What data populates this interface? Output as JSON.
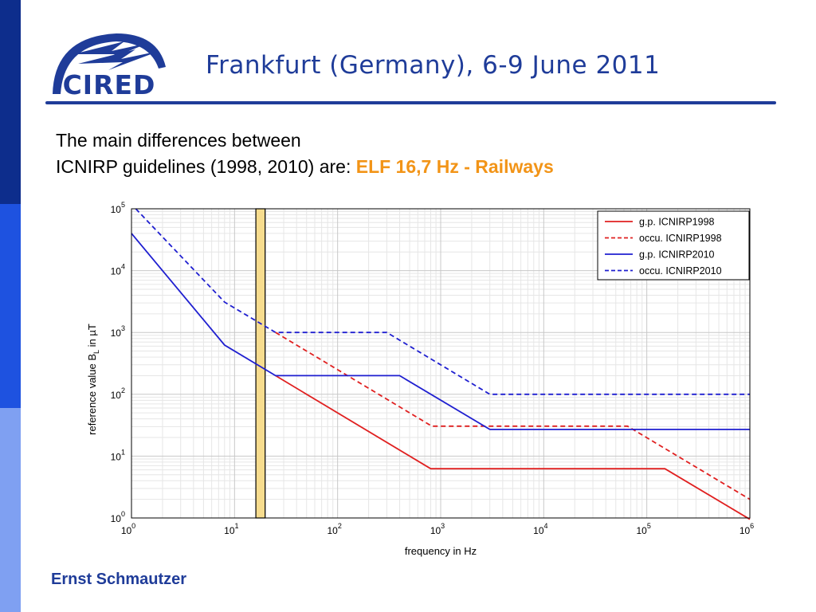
{
  "header": {
    "logo_text": "CIRED",
    "title": "Frankfurt (Germany), 6-9 June 2011"
  },
  "intro": {
    "line1": "The main differences between",
    "line2_prefix": "ICNIRP guidelines (1998, 2010) are: ",
    "highlight": "ELF 16,7 Hz - Railways"
  },
  "footer": {
    "author": "Ernst Schmautzer"
  },
  "colors": {
    "brand_blue": "#1f3c99",
    "highlight_orange": "#f29417",
    "band_dark": "#0d2d8c",
    "band_mid": "#1e52e0",
    "band_light": "#7fa0f2",
    "series_red": "#e02020",
    "series_blue": "#1f1fd0",
    "marker_fill": "#f7dc8e"
  },
  "chart_data": {
    "type": "line",
    "xscale": "log",
    "yscale": "log",
    "xlim": [
      1,
      1000000
    ],
    "ylim": [
      1,
      100000
    ],
    "xlabel": "frequency in Hz",
    "ylabel": "reference value B",
    "ylabel_sub": "L",
    "ylabel_suffix": " in µT",
    "tick_base": "10",
    "x_tick_exponents": [
      "0",
      "1",
      "2",
      "3",
      "4",
      "5",
      "6"
    ],
    "y_tick_exponents": [
      "0",
      "1",
      "2",
      "3",
      "4",
      "5"
    ],
    "grid": true,
    "legend_position": "top-right",
    "highlight_band": [
      16.1,
      19.8
    ],
    "series": [
      {
        "name": "g.p. ICNIRP1998",
        "color": "#e02020",
        "dash": "solid",
        "points": [
          [
            25,
            200
          ],
          [
            800,
            6.25
          ],
          [
            150000,
            6.25
          ],
          [
            1000000,
            0.95
          ]
        ]
      },
      {
        "name": "occu. ICNIRP1998",
        "color": "#e02020",
        "dash": "dashed",
        "points": [
          [
            25,
            1000
          ],
          [
            820,
            30.5
          ],
          [
            65000,
            30.5
          ],
          [
            1000000,
            2
          ]
        ]
      },
      {
        "name": "g.p. ICNIRP2010",
        "color": "#1f1fd0",
        "dash": "solid",
        "points": [
          [
            1,
            40000
          ],
          [
            8,
            625
          ],
          [
            25,
            200
          ],
          [
            400,
            200
          ],
          [
            3000,
            27
          ],
          [
            1000000,
            27
          ]
        ]
      },
      {
        "name": "occu. ICNIRP2010",
        "color": "#1f1fd0",
        "dash": "dashed",
        "points": [
          [
            1.1,
            100000
          ],
          [
            8,
            3100
          ],
          [
            25,
            1000
          ],
          [
            300,
            1000
          ],
          [
            3000,
            100
          ],
          [
            1000000,
            100
          ]
        ]
      }
    ]
  }
}
